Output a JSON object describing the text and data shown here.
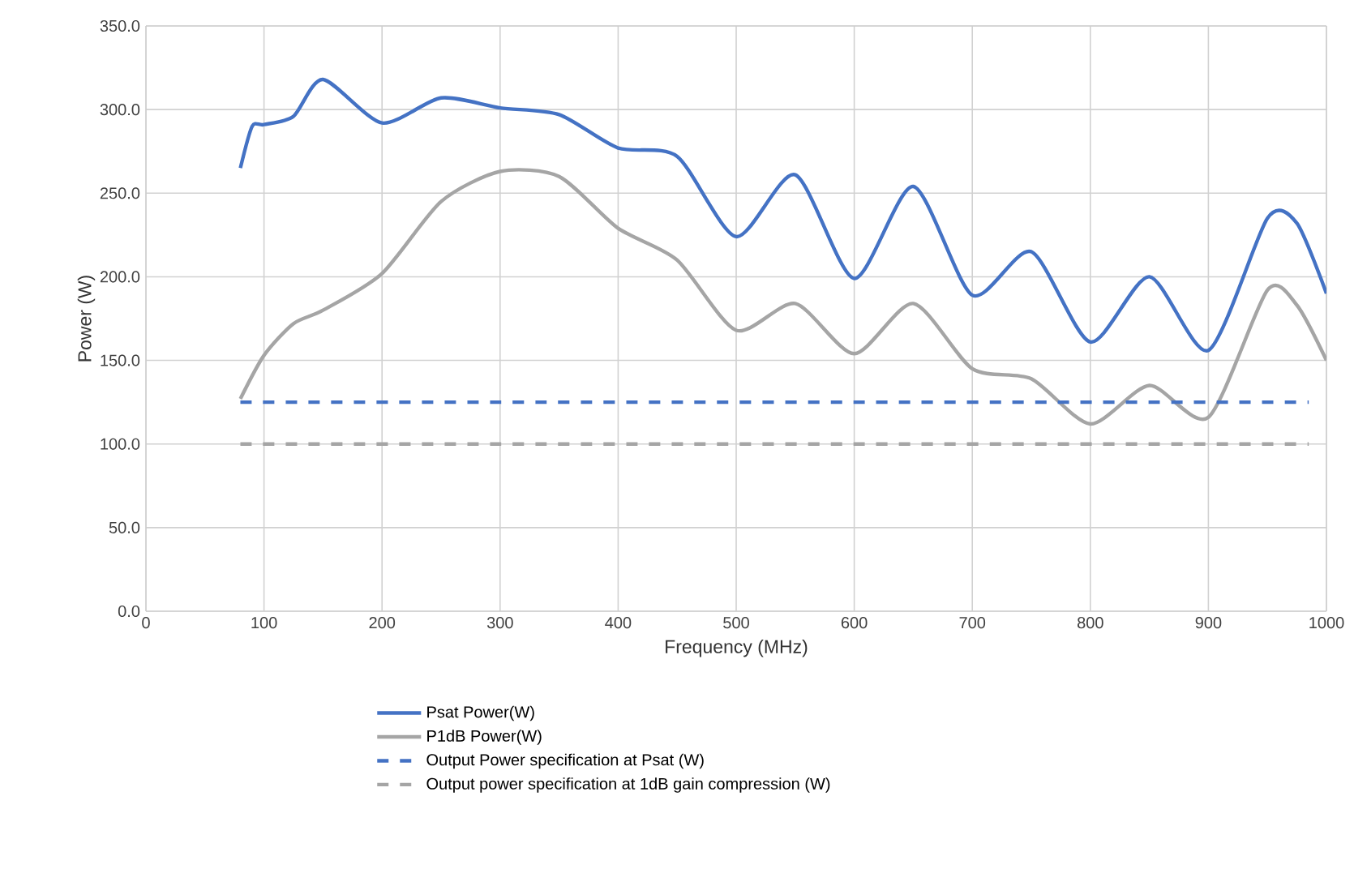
{
  "chart_data": {
    "type": "line",
    "xlabel": "Frequency (MHz)",
    "ylabel": "Power (W)",
    "xlim": [
      0,
      1000
    ],
    "xticks": [
      0,
      100,
      200,
      300,
      400,
      500,
      600,
      700,
      800,
      900,
      1000
    ],
    "ylim": [
      0,
      350
    ],
    "yticks": [
      {
        "value": 0,
        "label": "0.0"
      },
      {
        "value": 50,
        "label": "50.0"
      },
      {
        "value": 100,
        "label": "100.0"
      },
      {
        "value": 150,
        "label": "150.0"
      },
      {
        "value": 200,
        "label": "200.0"
      },
      {
        "value": 250,
        "label": "250.0"
      },
      {
        "value": 300,
        "label": "300.0"
      },
      {
        "value": 350,
        "label": "350.0"
      }
    ],
    "grid": true,
    "legend": "bottom",
    "marker": "none",
    "series": [
      {
        "name": "Psat Power(W)",
        "color": "#4472c4",
        "line_style": "solid",
        "x": [
          80,
          90,
          100,
          125,
          150,
          200,
          250,
          300,
          350,
          400,
          450,
          500,
          550,
          600,
          650,
          700,
          750,
          800,
          850,
          900,
          950,
          975,
          1000
        ],
        "values": [
          265,
          290,
          291,
          296,
          318,
          292,
          307,
          301,
          297,
          277,
          272,
          224,
          261,
          199,
          254,
          189,
          215,
          161,
          200,
          156,
          235,
          232,
          190
        ]
      },
      {
        "name": "P1dB Power(W)",
        "color": "#a5a5a5",
        "line_style": "solid",
        "x": [
          80,
          100,
          125,
          150,
          200,
          250,
          300,
          350,
          400,
          450,
          500,
          550,
          600,
          650,
          700,
          750,
          800,
          850,
          900,
          950,
          975,
          1000
        ],
        "values": [
          127,
          153,
          172,
          180,
          202,
          245,
          263,
          260,
          229,
          210,
          168,
          184,
          154,
          184,
          145,
          139,
          112,
          135,
          116,
          192,
          183,
          150
        ]
      },
      {
        "name": "Output Power specification at Psat (W)",
        "color": "#4472c4",
        "line_style": "dashed",
        "x": [
          80,
          985
        ],
        "values": [
          125,
          125
        ]
      },
      {
        "name": "Output power specification at 1dB gain compression (W)",
        "color": "#a5a5a5",
        "line_style": "dashed",
        "x": [
          80,
          985
        ],
        "values": [
          100,
          100
        ]
      }
    ]
  }
}
